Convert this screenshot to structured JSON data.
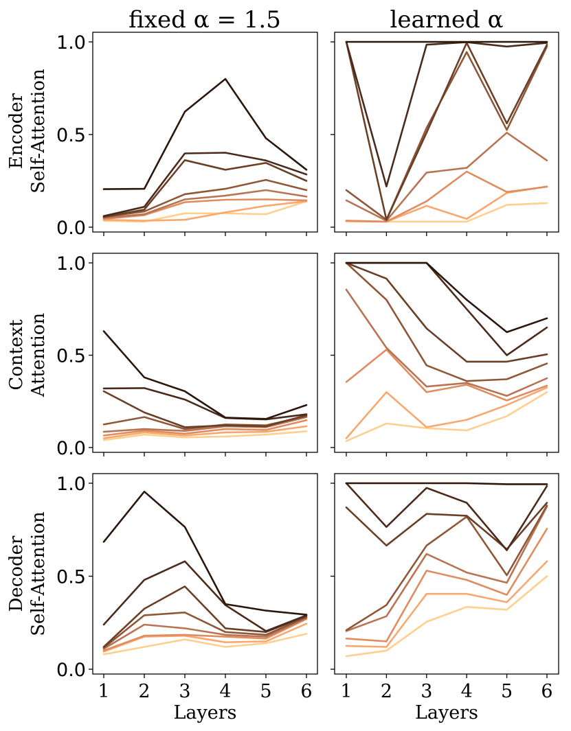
{
  "figure": {
    "columns": [
      "fixed α = 1.5",
      "learned α"
    ],
    "rows": [
      [
        "Encoder",
        "Self-Attention"
      ],
      [
        "Context",
        "Attention"
      ],
      [
        "Decoder",
        "Self-Attention"
      ]
    ]
  },
  "chart_data": [
    {
      "id": "enc-fixed",
      "type": "line",
      "title": "fixed α = 1.5",
      "ylabel": "Encoder Self-Attention",
      "xlabel": "",
      "x": [
        1,
        2,
        3,
        4,
        5,
        6
      ],
      "ylim": [
        0,
        1
      ],
      "yticks": [
        "0.0",
        "0.5",
        "1.0"
      ],
      "series": [
        {
          "color": "#2b160c",
          "values": [
            0.205,
            0.207,
            0.623,
            0.8,
            0.48,
            0.31
          ]
        },
        {
          "color": "#4a2b1b",
          "values": [
            0.06,
            0.11,
            0.398,
            0.402,
            0.36,
            0.285
          ]
        },
        {
          "color": "#6a3f27",
          "values": [
            0.055,
            0.095,
            0.362,
            0.31,
            0.347,
            0.25
          ]
        },
        {
          "color": "#8f5738",
          "values": [
            0.055,
            0.085,
            0.178,
            0.207,
            0.255,
            0.2
          ]
        },
        {
          "color": "#b87452",
          "values": [
            0.05,
            0.07,
            0.15,
            0.17,
            0.2,
            0.165
          ]
        },
        {
          "color": "#df8c60",
          "values": [
            0.045,
            0.065,
            0.135,
            0.148,
            0.15,
            0.145
          ]
        },
        {
          "color": "#f8a76f",
          "values": [
            0.04,
            0.035,
            0.04,
            0.08,
            0.115,
            0.14
          ]
        },
        {
          "color": "#ffcf8e",
          "values": [
            0.035,
            0.03,
            0.075,
            0.075,
            0.07,
            0.14
          ]
        }
      ]
    },
    {
      "id": "enc-learned",
      "type": "line",
      "title": "learned α",
      "ylabel": "",
      "xlabel": "",
      "x": [
        1,
        2,
        3,
        4,
        5,
        6
      ],
      "ylim": [
        0,
        1
      ],
      "yticks": [
        "",
        "",
        ""
      ],
      "series": [
        {
          "color": "#2b160c",
          "values": [
            1.0,
            1.0,
            1.0,
            1.0,
            1.0,
            1.0
          ]
        },
        {
          "color": "#4a2b1b",
          "values": [
            1.0,
            0.22,
            0.985,
            0.998,
            0.975,
            0.995
          ]
        },
        {
          "color": "#6a3f27",
          "values": [
            1.0,
            0.04,
            0.51,
            0.995,
            0.56,
            0.985
          ]
        },
        {
          "color": "#8f5738",
          "values": [
            0.2,
            0.04,
            0.535,
            0.945,
            0.525,
            0.975
          ]
        },
        {
          "color": "#b87452",
          "values": [
            0.145,
            0.035,
            0.295,
            0.32,
            0.51,
            0.36
          ]
        },
        {
          "color": "#df8c60",
          "values": [
            0.035,
            0.03,
            0.14,
            0.3,
            0.19,
            0.218
          ]
        },
        {
          "color": "#f8a76f",
          "values": [
            0.035,
            0.03,
            0.115,
            0.045,
            0.185,
            0.22
          ]
        },
        {
          "color": "#ffcf8e",
          "values": [
            0.03,
            0.03,
            0.03,
            0.03,
            0.12,
            0.13
          ]
        }
      ]
    },
    {
      "id": "ctx-fixed",
      "type": "line",
      "title": "",
      "ylabel": "Context Attention",
      "xlabel": "",
      "x": [
        1,
        2,
        3,
        4,
        5,
        6
      ],
      "ylim": [
        0,
        1
      ],
      "yticks": [
        "0.0",
        "0.5",
        "1.0"
      ],
      "series": [
        {
          "color": "#2b160c",
          "values": [
            0.63,
            0.38,
            0.305,
            0.162,
            0.155,
            0.23
          ]
        },
        {
          "color": "#4a2b1b",
          "values": [
            0.32,
            0.322,
            0.26,
            0.16,
            0.152,
            0.18
          ]
        },
        {
          "color": "#6a3f27",
          "values": [
            0.305,
            0.19,
            0.11,
            0.12,
            0.115,
            0.175
          ]
        },
        {
          "color": "#8f5738",
          "values": [
            0.125,
            0.165,
            0.1,
            0.125,
            0.12,
            0.17
          ]
        },
        {
          "color": "#b87452",
          "values": [
            0.085,
            0.1,
            0.09,
            0.115,
            0.11,
            0.165
          ]
        },
        {
          "color": "#df8c60",
          "values": [
            0.065,
            0.092,
            0.075,
            0.1,
            0.095,
            0.148
          ]
        },
        {
          "color": "#f8a76f",
          "values": [
            0.05,
            0.082,
            0.065,
            0.082,
            0.085,
            0.115
          ]
        },
        {
          "color": "#ffcf8e",
          "values": [
            0.04,
            0.07,
            0.055,
            0.06,
            0.07,
            0.088
          ]
        }
      ]
    },
    {
      "id": "ctx-learned",
      "type": "line",
      "title": "",
      "ylabel": "",
      "xlabel": "",
      "x": [
        1,
        2,
        3,
        4,
        5,
        6
      ],
      "ylim": [
        0,
        1
      ],
      "yticks": [
        "",
        "",
        ""
      ],
      "series": [
        {
          "color": "#2b160c",
          "values": [
            1.0,
            1.0,
            1.0,
            0.8,
            0.625,
            0.7
          ]
        },
        {
          "color": "#4a2b1b",
          "values": [
            1.0,
            1.0,
            1.0,
            0.75,
            0.5,
            0.65
          ]
        },
        {
          "color": "#6a3f27",
          "values": [
            1.0,
            0.915,
            0.645,
            0.465,
            0.465,
            0.505
          ]
        },
        {
          "color": "#8f5738",
          "values": [
            1.0,
            0.8,
            0.445,
            0.36,
            0.37,
            0.455
          ]
        },
        {
          "color": "#b87452",
          "values": [
            0.855,
            0.54,
            0.33,
            0.35,
            0.28,
            0.375
          ]
        },
        {
          "color": "#df8c60",
          "values": [
            0.355,
            0.53,
            0.3,
            0.34,
            0.255,
            0.335
          ]
        },
        {
          "color": "#f8a76f",
          "values": [
            0.05,
            0.3,
            0.11,
            0.15,
            0.23,
            0.325
          ]
        },
        {
          "color": "#ffcf8e",
          "values": [
            0.035,
            0.13,
            0.105,
            0.093,
            0.17,
            0.3
          ]
        }
      ]
    },
    {
      "id": "dec-fixed",
      "type": "line",
      "title": "",
      "ylabel": "Decoder Self-Attention",
      "xlabel": "Layers",
      "x": [
        1,
        2,
        3,
        4,
        5,
        6
      ],
      "ylim": [
        0,
        1
      ],
      "yticks": [
        "0.0",
        "0.5",
        "1.0"
      ],
      "xticks": [
        "1",
        "2",
        "3",
        "4",
        "5",
        "6"
      ],
      "series": [
        {
          "color": "#2b160c",
          "values": [
            0.685,
            0.955,
            0.765,
            0.35,
            0.315,
            0.293
          ]
        },
        {
          "color": "#4a2b1b",
          "values": [
            0.24,
            0.48,
            0.58,
            0.345,
            0.205,
            0.29
          ]
        },
        {
          "color": "#6a3f27",
          "values": [
            0.12,
            0.325,
            0.445,
            0.22,
            0.2,
            0.285
          ]
        },
        {
          "color": "#8f5738",
          "values": [
            0.115,
            0.29,
            0.305,
            0.2,
            0.185,
            0.28
          ]
        },
        {
          "color": "#b87452",
          "values": [
            0.11,
            0.24,
            0.22,
            0.185,
            0.175,
            0.275
          ]
        },
        {
          "color": "#df8c60",
          "values": [
            0.1,
            0.18,
            0.185,
            0.175,
            0.165,
            0.27
          ]
        },
        {
          "color": "#f8a76f",
          "values": [
            0.095,
            0.175,
            0.18,
            0.145,
            0.15,
            0.245
          ]
        },
        {
          "color": "#ffcf8e",
          "values": [
            0.08,
            0.12,
            0.16,
            0.12,
            0.14,
            0.19
          ]
        }
      ]
    },
    {
      "id": "dec-learned",
      "type": "line",
      "title": "",
      "ylabel": "",
      "xlabel": "Layers",
      "x": [
        1,
        2,
        3,
        4,
        5,
        6
      ],
      "ylim": [
        0,
        1
      ],
      "yticks": [
        "",
        "",
        ""
      ],
      "xticks": [
        "1",
        "2",
        "3",
        "4",
        "5",
        "6"
      ],
      "series": [
        {
          "color": "#2b160c",
          "values": [
            1.0,
            1.0,
            1.0,
            1.0,
            0.995,
            0.995
          ]
        },
        {
          "color": "#4a2b1b",
          "values": [
            1.0,
            0.765,
            0.975,
            0.895,
            0.64,
            0.985
          ]
        },
        {
          "color": "#6a3f27",
          "values": [
            0.87,
            0.665,
            0.835,
            0.825,
            0.645,
            0.895
          ]
        },
        {
          "color": "#8f5738",
          "values": [
            0.21,
            0.345,
            0.665,
            0.82,
            0.505,
            0.88
          ]
        },
        {
          "color": "#b87452",
          "values": [
            0.205,
            0.285,
            0.62,
            0.52,
            0.465,
            0.875
          ]
        },
        {
          "color": "#df8c60",
          "values": [
            0.165,
            0.15,
            0.53,
            0.48,
            0.4,
            0.755
          ]
        },
        {
          "color": "#f8a76f",
          "values": [
            0.125,
            0.12,
            0.405,
            0.405,
            0.36,
            0.58
          ]
        },
        {
          "color": "#ffcf8e",
          "values": [
            0.07,
            0.1,
            0.255,
            0.335,
            0.32,
            0.5
          ]
        }
      ]
    }
  ]
}
